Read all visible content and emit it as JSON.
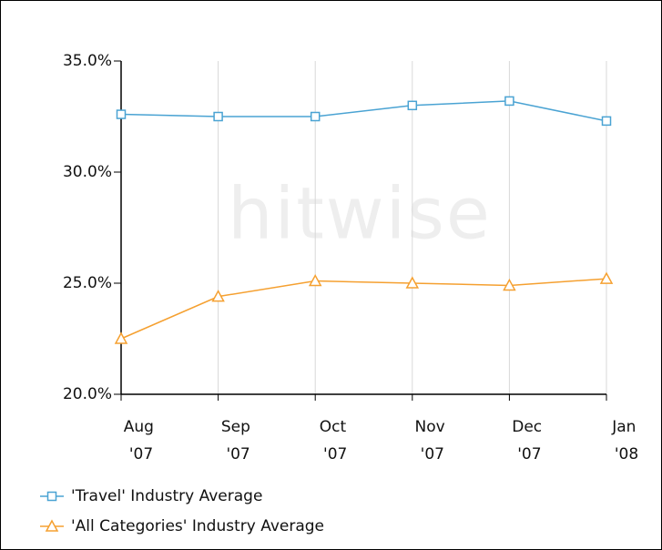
{
  "chart_data": {
    "type": "line",
    "watermark": "hitwise",
    "categories": [
      "Aug '07",
      "Sep '07",
      "Oct '07",
      "Nov '07",
      "Dec '07",
      "Jan '08"
    ],
    "series": [
      {
        "name": "'Travel' Industry Average",
        "color": "#4aa3d3",
        "marker": "square",
        "values": [
          32.6,
          32.5,
          32.5,
          33.0,
          33.2,
          32.3
        ]
      },
      {
        "name": "'All Categories' Industry Average",
        "color": "#f5a030",
        "marker": "triangle",
        "values": [
          22.5,
          24.4,
          25.1,
          25.0,
          24.9,
          25.2
        ]
      }
    ],
    "ylim": [
      20,
      35
    ],
    "yticks": [
      {
        "value": 20,
        "label": "20.0%"
      },
      {
        "value": 25,
        "label": "25.0%"
      },
      {
        "value": 30,
        "label": "30.0%"
      },
      {
        "value": 35,
        "label": "35.0%"
      }
    ],
    "grid": "vertical",
    "legend": "bottom-left"
  }
}
